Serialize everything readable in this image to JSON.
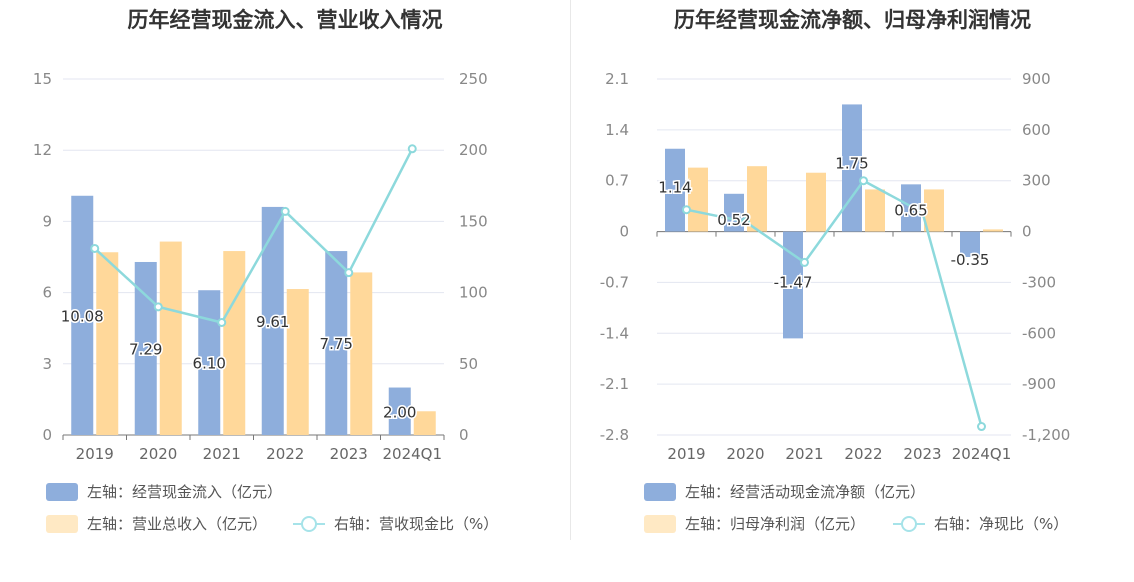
{
  "chart_data": [
    {
      "type": "bar",
      "title": "历年经营现金流入、营业收入情况",
      "categories": [
        "2019",
        "2020",
        "2021",
        "2022",
        "2023",
        "2024Q1"
      ],
      "left_axis": {
        "ticks": [
          "15",
          "12",
          "9",
          "6",
          "3",
          "0"
        ],
        "ylim": [
          0,
          15
        ]
      },
      "right_axis": {
        "ticks": [
          "250",
          "200",
          "150",
          "100",
          "50",
          "0"
        ],
        "ylim": [
          0,
          250
        ]
      },
      "grid": true,
      "legend_position": "bottom-left",
      "series": [
        {
          "name": "左轴：经营现金流入（亿元）",
          "kind": "bar",
          "axis": "left",
          "color": "#8eaedc",
          "values": [
            10.08,
            7.29,
            6.1,
            9.61,
            7.75,
            2.0
          ],
          "labels": [
            "10.08",
            "7.29",
            "6.10",
            "9.61",
            "7.75",
            "2.00"
          ]
        },
        {
          "name": "左轴：营业总收入（亿元）",
          "kind": "bar",
          "axis": "left",
          "color": "#ffd89a",
          "values": [
            7.7,
            8.15,
            7.75,
            6.15,
            6.85,
            1.0
          ]
        },
        {
          "name": "右轴：营收现金比（%）",
          "kind": "line",
          "axis": "right",
          "color": "#8dd9dc",
          "values": [
            131,
            90,
            79,
            157,
            114,
            201
          ]
        }
      ]
    },
    {
      "type": "bar",
      "title": "历年经营现金流净额、归母净利润情况",
      "categories": [
        "2019",
        "2020",
        "2021",
        "2022",
        "2023",
        "2024Q1"
      ],
      "left_axis": {
        "ticks": [
          "2.1",
          "1.4",
          "0.7",
          "0",
          "-0.7",
          "-1.4",
          "-2.1",
          "-2.8"
        ],
        "ylim": [
          -2.8,
          2.1
        ]
      },
      "right_axis": {
        "ticks": [
          "900",
          "600",
          "300",
          "0",
          "-300",
          "-600",
          "-900",
          "-1,200"
        ],
        "ylim": [
          -1200,
          900
        ]
      },
      "grid": true,
      "legend_position": "bottom-left",
      "series": [
        {
          "name": "左轴：经营活动现金流净额（亿元）",
          "kind": "bar",
          "axis": "left",
          "color": "#8eaedc",
          "values": [
            1.14,
            0.52,
            -1.47,
            1.75,
            0.65,
            -0.35
          ],
          "labels": [
            "1.14",
            "0.52",
            "-1.47",
            "1.75",
            "0.65",
            "-0.35"
          ]
        },
        {
          "name": "左轴：归母净利润（亿元）",
          "kind": "bar",
          "axis": "left",
          "color": "#ffd89a",
          "values": [
            0.88,
            0.9,
            0.81,
            0.58,
            0.58,
            0.03
          ]
        },
        {
          "name": "右轴：净现比（%）",
          "kind": "line",
          "axis": "right",
          "color": "#8dd9dc",
          "values": [
            129,
            58,
            -182,
            300,
            112,
            -1150
          ]
        }
      ]
    }
  ]
}
